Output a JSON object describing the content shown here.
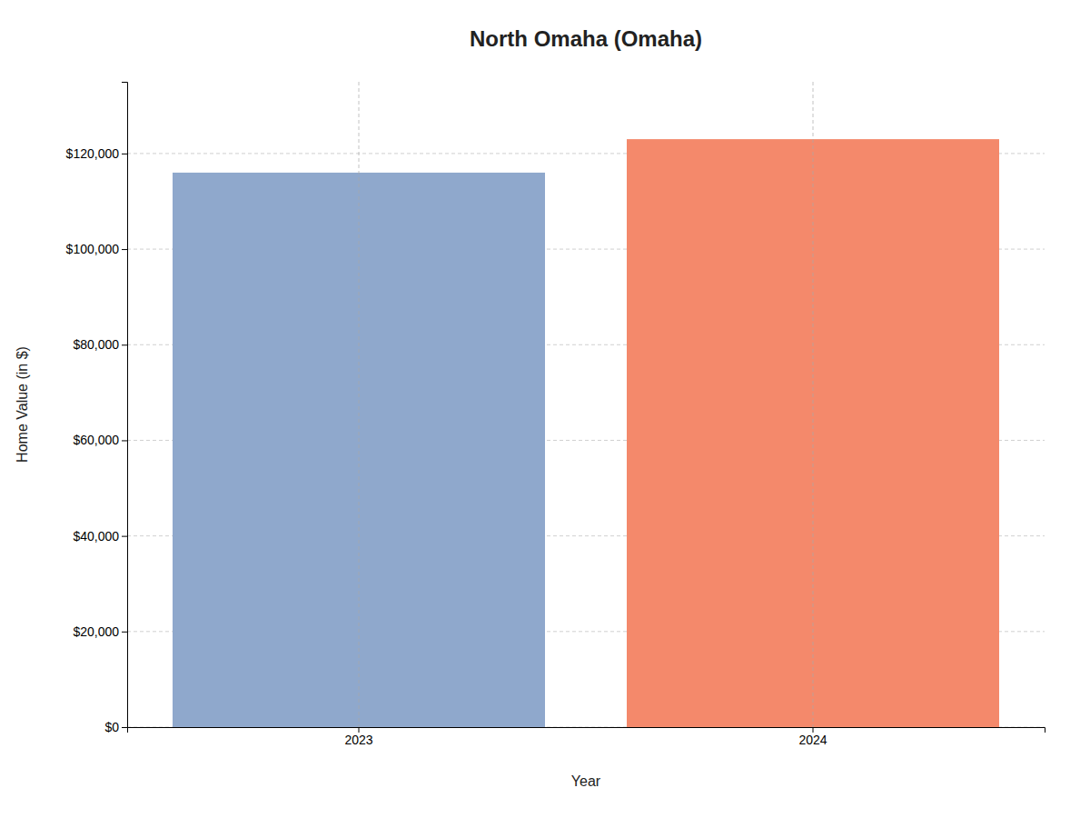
{
  "chart_data": {
    "type": "bar",
    "title": "North Omaha (Omaha)",
    "xlabel": "Year",
    "ylabel": "Home Value (in $)",
    "categories": [
      "2023",
      "2024"
    ],
    "values": [
      116000,
      123000
    ],
    "colors": [
      "#8FA8CC",
      "#F4896B"
    ],
    "ylim": [
      0,
      135000
    ],
    "yticks": [
      {
        "value": 0,
        "label": "$0"
      },
      {
        "value": 20000,
        "label": "$20,000"
      },
      {
        "value": 40000,
        "label": "$40,000"
      },
      {
        "value": 60000,
        "label": "$60,000"
      },
      {
        "value": 80000,
        "label": "$80,000"
      },
      {
        "value": 100000,
        "label": "$100,000"
      },
      {
        "value": 120000,
        "label": "$120,000"
      }
    ],
    "grid": true
  }
}
